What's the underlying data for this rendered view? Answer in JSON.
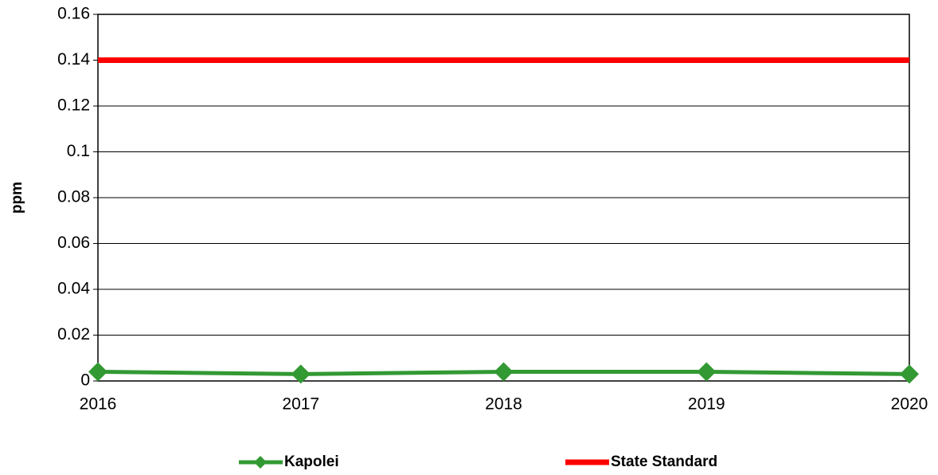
{
  "chart_data": {
    "type": "line",
    "ylabel": "ppm",
    "categories": [
      "2016",
      "2017",
      "2018",
      "2019",
      "2020"
    ],
    "series": [
      {
        "name": "Kapolei",
        "color": "#339933",
        "values": [
          0.004,
          0.003,
          0.004,
          0.004,
          0.003
        ]
      },
      {
        "name": "State Standard",
        "color": "#ff0000",
        "values": [
          0.14,
          0.14,
          0.14,
          0.14,
          0.14
        ]
      }
    ],
    "ylim": [
      0,
      0.16
    ],
    "yticks": [
      0,
      0.02,
      0.04,
      0.06,
      0.08,
      0.1,
      0.12,
      0.14,
      0.16
    ],
    "grid": true
  }
}
